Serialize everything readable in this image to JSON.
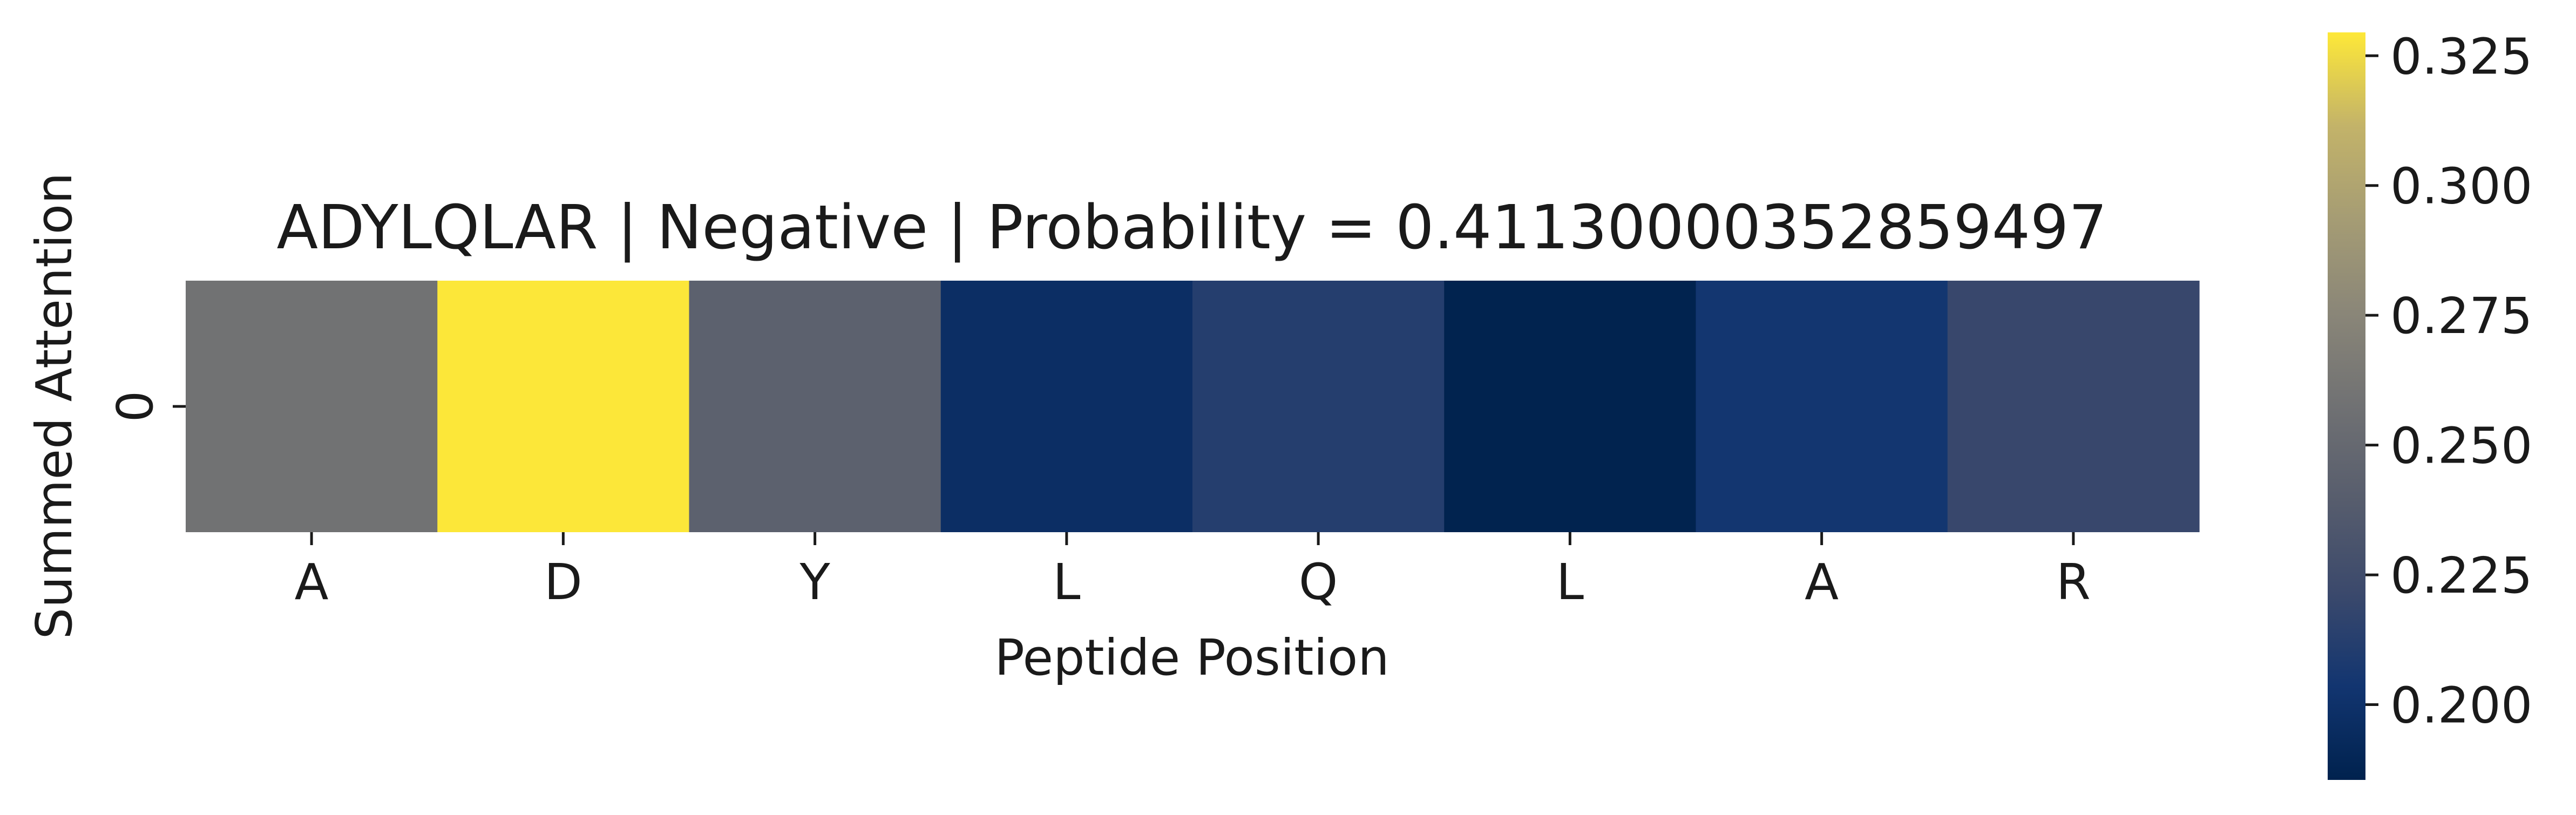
{
  "chart_data": {
    "type": "heatmap",
    "title": "ADYLQLAR | Negative | Probability = 0.41130000352859497",
    "xlabel": "Peptide Position",
    "ylabel": "Summed Attention",
    "x_categories": [
      "A",
      "D",
      "Y",
      "L",
      "Q",
      "L",
      "A",
      "R"
    ],
    "y_categories": [
      "0"
    ],
    "values": [
      [
        0.258,
        0.329,
        0.243,
        0.197,
        0.212,
        0.186,
        0.204,
        0.22
      ]
    ],
    "colormap": "cividis",
    "colorbar": {
      "vmin": 0.1855,
      "vmax": 0.3295,
      "ticks": [
        0.2,
        0.225,
        0.25,
        0.275,
        0.3,
        0.325
      ],
      "tick_labels": [
        "0.200",
        "0.225",
        "0.250",
        "0.275",
        "0.300",
        "0.325"
      ]
    },
    "colors": {
      "low": "#00224e",
      "high": "#fee838"
    }
  }
}
